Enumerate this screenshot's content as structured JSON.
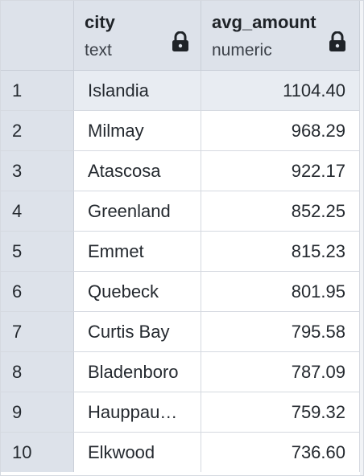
{
  "columns": [
    {
      "name": "city",
      "type": "text",
      "icon": "lock-icon"
    },
    {
      "name": "avg_amount",
      "type": "numeric",
      "icon": "lock-icon"
    }
  ],
  "rows": [
    {
      "num": "1",
      "city": "Islandia",
      "avg_amount": "1104.40"
    },
    {
      "num": "2",
      "city": "Milmay",
      "avg_amount": "968.29"
    },
    {
      "num": "3",
      "city": "Atascosa",
      "avg_amount": "922.17"
    },
    {
      "num": "4",
      "city": "Greenland",
      "avg_amount": "852.25"
    },
    {
      "num": "5",
      "city": "Emmet",
      "avg_amount": "815.23"
    },
    {
      "num": "6",
      "city": "Quebeck",
      "avg_amount": "801.95"
    },
    {
      "num": "7",
      "city": "Curtis Bay",
      "avg_amount": "795.58"
    },
    {
      "num": "8",
      "city": "Bladenboro",
      "avg_amount": "787.09"
    },
    {
      "num": "9",
      "city": "Hauppau…",
      "avg_amount": "759.32"
    },
    {
      "num": "10",
      "city": "Elkwood",
      "avg_amount": "736.60"
    }
  ],
  "colors": {
    "header_bg": "#dde2ea",
    "selected_row_bg": "#e8ecf2",
    "border": "#d5d9e0"
  }
}
